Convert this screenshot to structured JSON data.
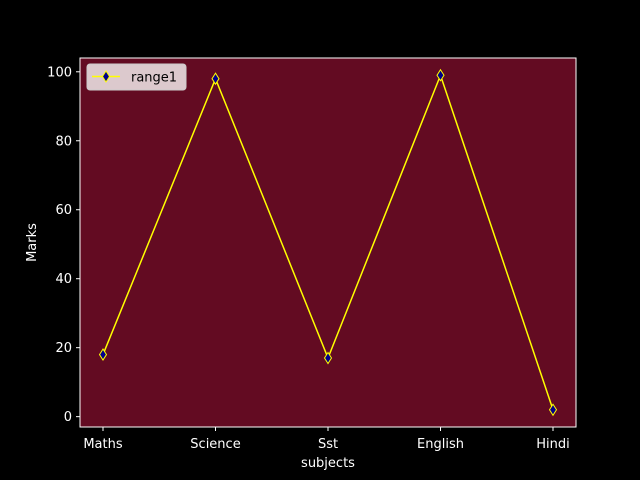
{
  "chart_data": {
    "type": "line",
    "title": "",
    "xlabel": "subjects",
    "ylabel": "Marks",
    "categories": [
      "Maths",
      "Science",
      "Sst",
      "English",
      "Hindi"
    ],
    "series": [
      {
        "name": "range1",
        "values": [
          18,
          98,
          17,
          99,
          2
        ]
      }
    ],
    "ylim": [
      -3,
      104
    ],
    "yticks": [
      0,
      20,
      40,
      60,
      80,
      100
    ],
    "grid": false,
    "legend": "top-left",
    "colors": {
      "figure_bg": "#000000",
      "plot_bg": "#630b22",
      "line": "#ffff00",
      "marker_face": "#00008b",
      "marker_edge": "#ffff00",
      "axes": "#ffffff",
      "legend_bg": "#dcc9cd"
    },
    "marker": "thin-diamond"
  }
}
